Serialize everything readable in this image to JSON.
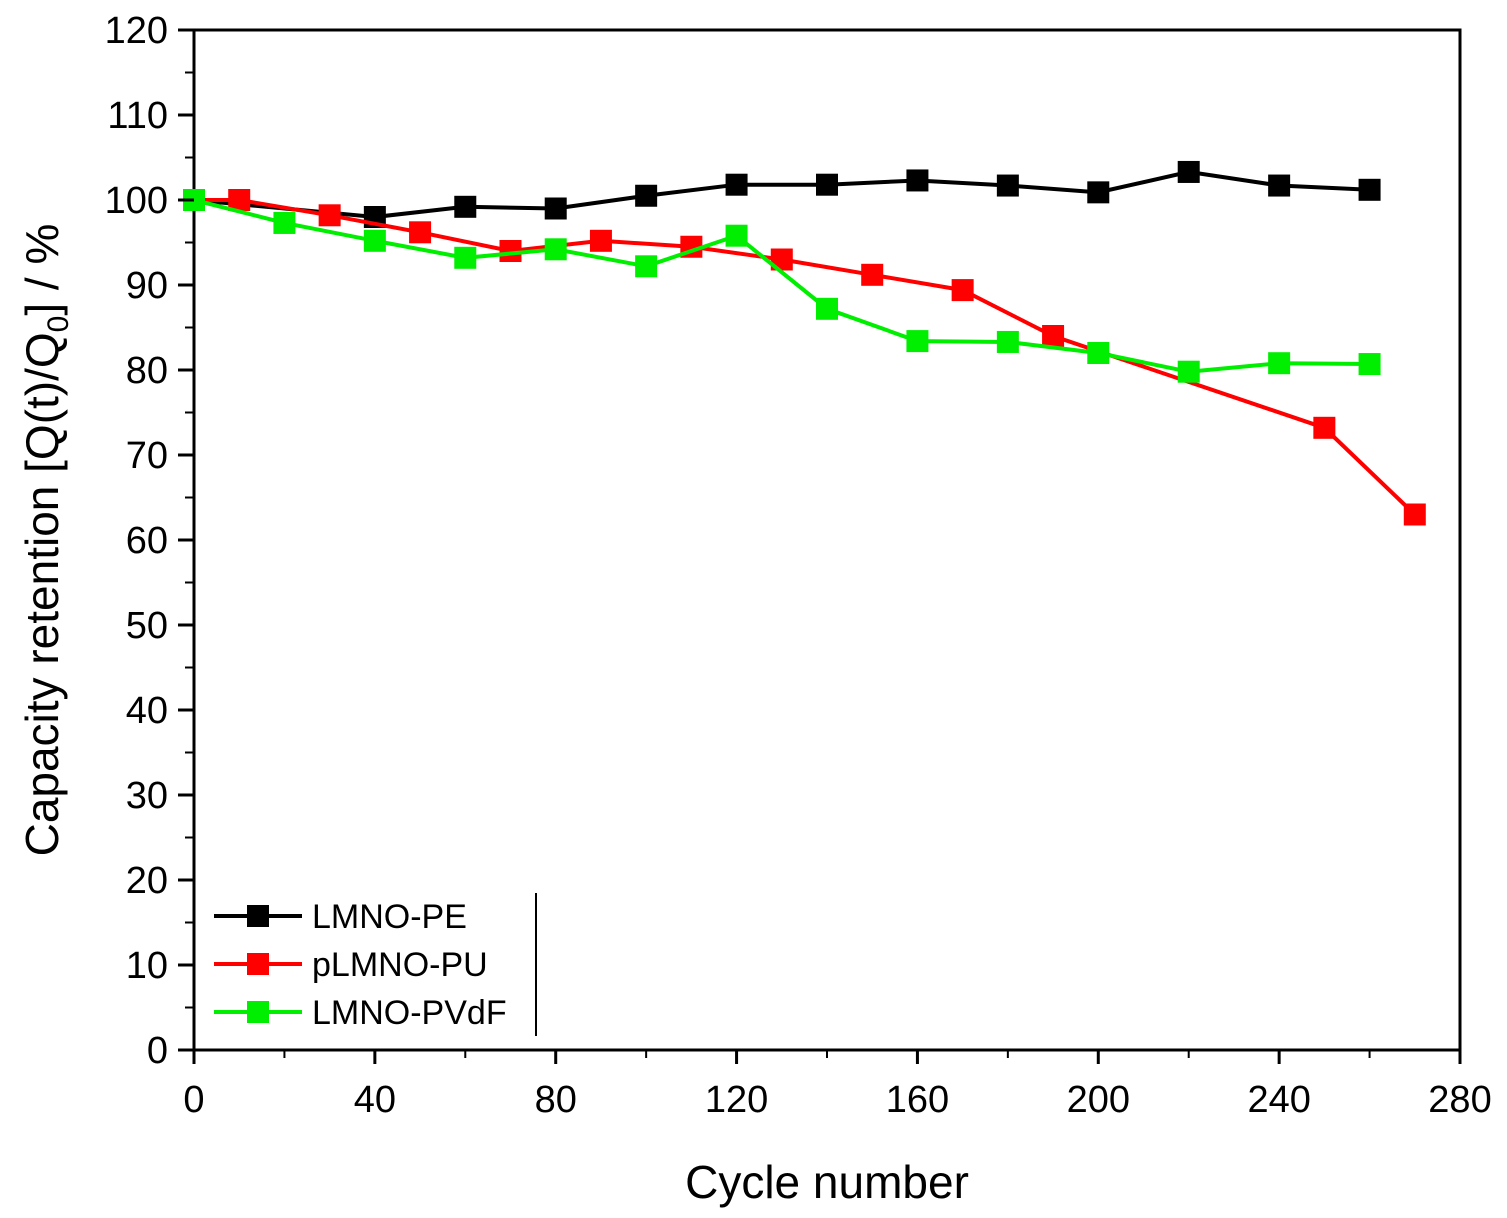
{
  "chart_data": {
    "type": "line",
    "xlabel": "Cycle number",
    "ylabel_main": "Capacity retention [Q(t)/Q",
    "ylabel_sub": "0",
    "ylabel_tail": "] / %",
    "xlim": [
      0,
      280
    ],
    "ylim": [
      0,
      120
    ],
    "x_ticks": [
      "0",
      "40",
      "80",
      "120",
      "160",
      "200",
      "240",
      "280"
    ],
    "y_ticks": [
      "0",
      "10",
      "20",
      "30",
      "40",
      "50",
      "60",
      "70",
      "80",
      "90",
      "100",
      "110",
      "120"
    ],
    "grid": false,
    "legend_position": "bottom-left",
    "series": [
      {
        "name": "LMNO-PE",
        "color": "#000000",
        "x": [
          0,
          40,
          60,
          80,
          100,
          120,
          140,
          160,
          180,
          200,
          220,
          240,
          260
        ],
        "y": [
          100,
          98,
          99.2,
          99,
          100.5,
          101.8,
          101.8,
          102.3,
          101.7,
          100.9,
          103.3,
          101.7,
          101.2
        ]
      },
      {
        "name": "pLMNO-PU",
        "color": "#ff0000",
        "x": [
          0,
          10,
          30,
          50,
          70,
          90,
          110,
          130,
          150,
          170,
          190,
          250,
          270
        ],
        "y": [
          100,
          100,
          98.2,
          96.2,
          94,
          95.2,
          94.5,
          93,
          91.2,
          89.4,
          84,
          73.2,
          63
        ]
      },
      {
        "name": "LMNO-PVdF",
        "color": "#00ee00",
        "x": [
          0,
          20,
          40,
          60,
          80,
          100,
          120,
          140,
          160,
          180,
          200,
          220,
          240,
          260
        ],
        "y": [
          100,
          97.3,
          95.2,
          93.2,
          94.2,
          92.2,
          95.8,
          87.2,
          83.4,
          83.3,
          82,
          79.8,
          80.8,
          80.7
        ]
      }
    ]
  }
}
